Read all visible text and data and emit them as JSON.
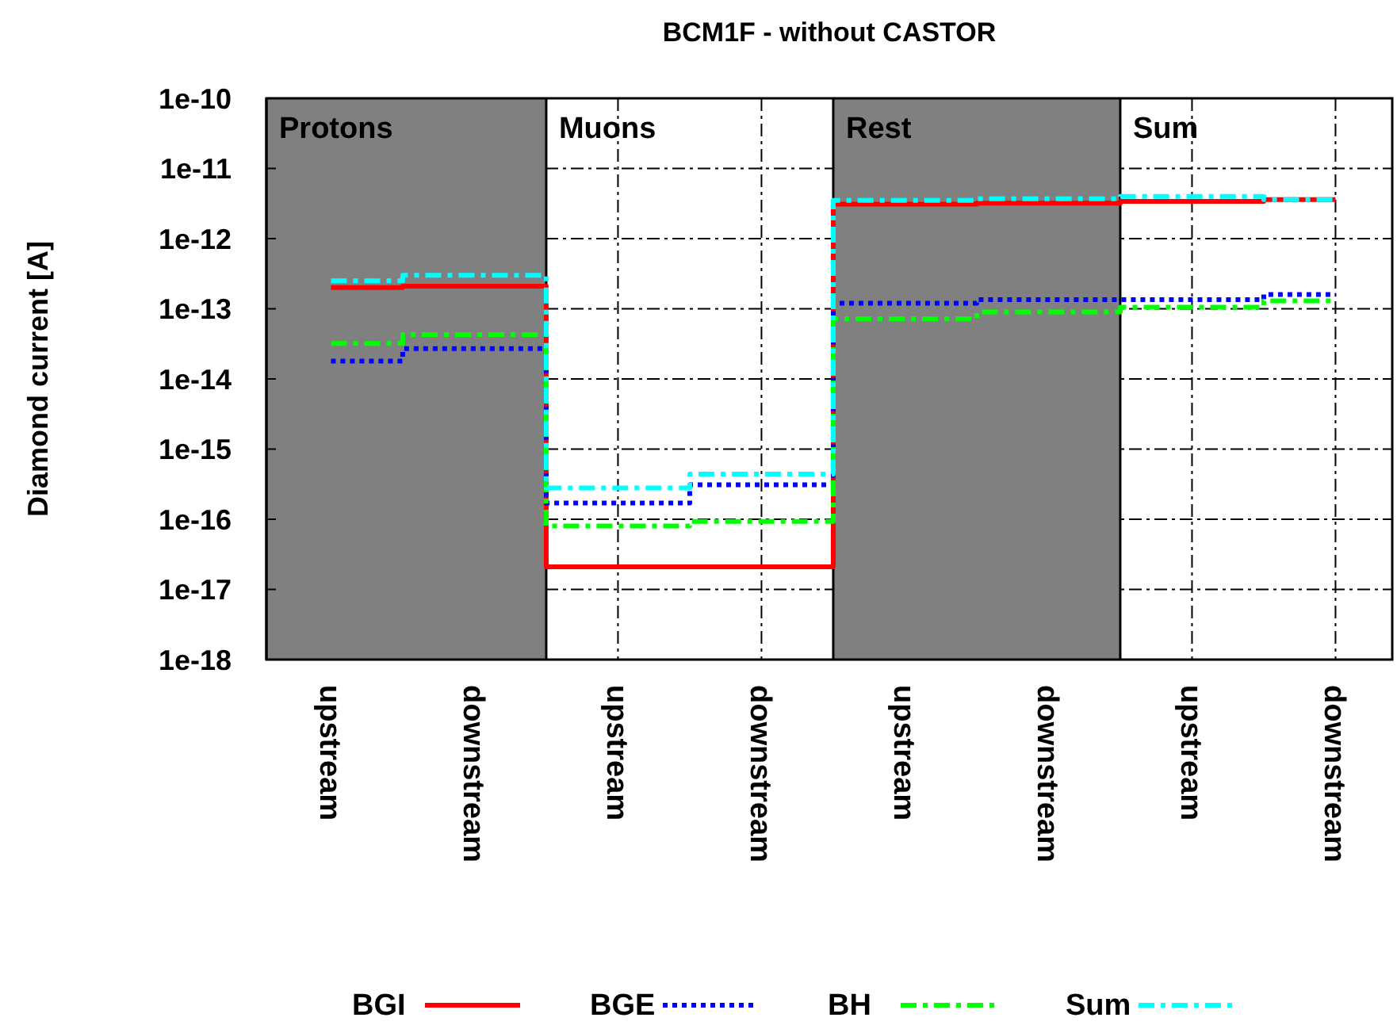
{
  "chart_data": {
    "type": "step",
    "title": "BCM1F - without CASTOR",
    "ylabel": "Diamond current [A]",
    "categories": [
      "upstream",
      "downstream",
      "upstream",
      "downstream",
      "upstream",
      "downstream",
      "upstream",
      "downstream"
    ],
    "series": [
      {
        "name": "BGI",
        "color": "#ff0000",
        "line_style": "solid",
        "values": [
          2e-13,
          2.1e-13,
          2.1e-17,
          2.1e-17,
          3.1e-12,
          3.2e-12,
          3.4e-12,
          3.6e-12
        ]
      },
      {
        "name": "BGE",
        "color": "#0000ff",
        "line_style": "dotted",
        "values": [
          1.8e-14,
          2.7e-14,
          1.7e-16,
          3.1e-16,
          1.2e-13,
          1.35e-13,
          1.35e-13,
          1.6e-13
        ]
      },
      {
        "name": "BH",
        "color": "#00ff00",
        "line_style": "dashed",
        "values": [
          3.2e-14,
          4.3e-14,
          8e-17,
          9.3e-17,
          7.2e-14,
          9e-14,
          1.05e-13,
          1.3e-13
        ]
      },
      {
        "name": "Sum",
        "color": "#00ffff",
        "line_style": "dashed",
        "values": [
          2.5e-13,
          3e-13,
          2.8e-16,
          4.4e-16,
          3.5e-12,
          3.7e-12,
          4e-12,
          3.6e-12
        ]
      }
    ],
    "log": true,
    "ylim": [
      1e-18,
      1e-10
    ],
    "yticks": [
      {
        "value": 1e-18,
        "label": "1e-18"
      },
      {
        "value": 1e-17,
        "label": "1e-17"
      },
      {
        "value": 1e-16,
        "label": "1e-16"
      },
      {
        "value": 1e-15,
        "label": "1e-15"
      },
      {
        "value": 1e-14,
        "label": "1e-14"
      },
      {
        "value": 1e-13,
        "label": "1e-13"
      },
      {
        "value": 1e-12,
        "label": "1e-12"
      },
      {
        "value": 1e-11,
        "label": "1e-11"
      },
      {
        "value": 1e-10,
        "label": "1e-10"
      }
    ],
    "grid": true,
    "legend": "bottom",
    "annotations": [
      "Protons",
      "Muons",
      "Rest",
      "Sum"
    ]
  }
}
